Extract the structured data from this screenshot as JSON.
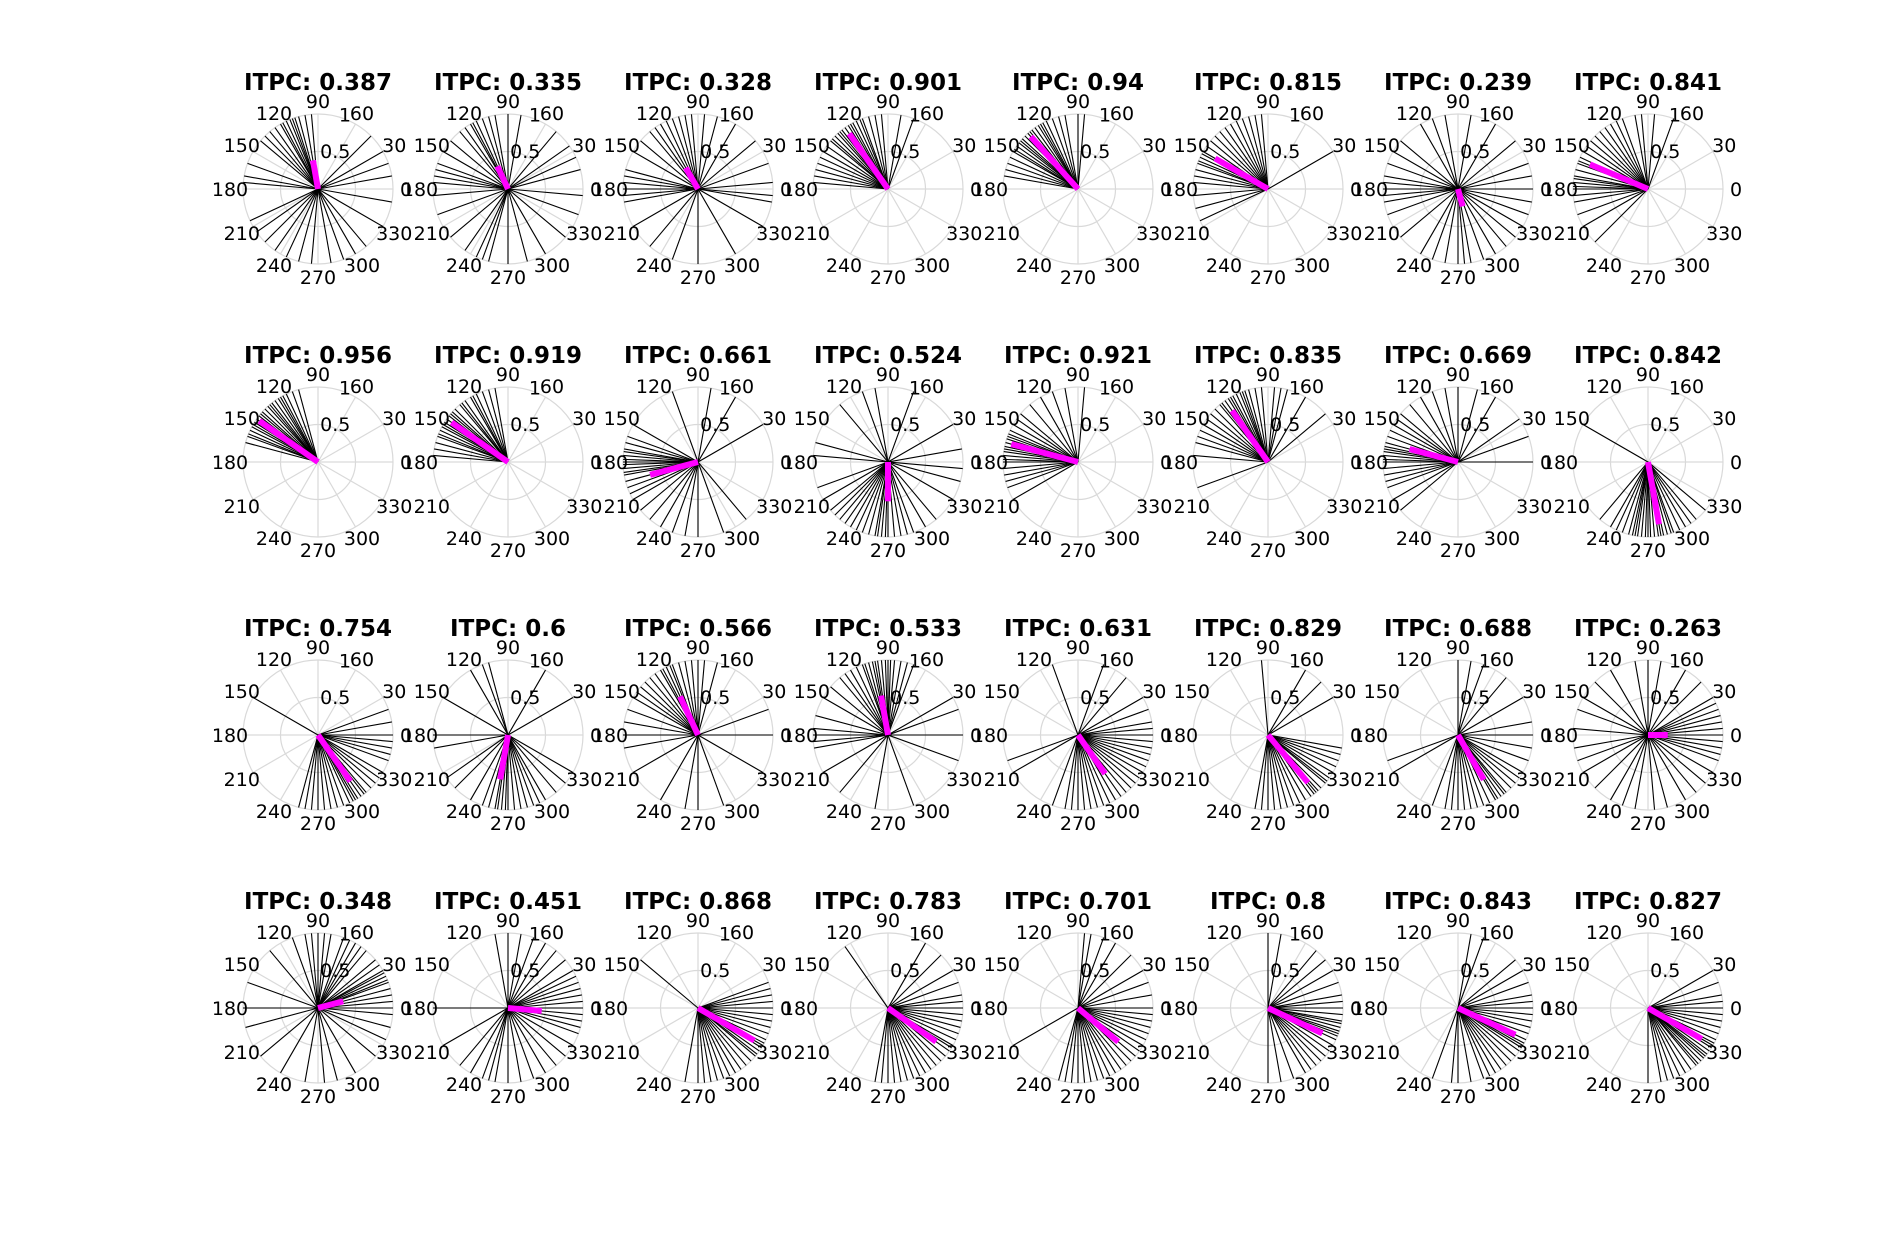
{
  "chart_data": {
    "type": "polar",
    "grid_rows": 4,
    "grid_cols": 8,
    "angle_ticks": [
      "0",
      "30",
      "60",
      "90",
      "120",
      "150",
      "180",
      "210",
      "240",
      "270",
      "300",
      "330"
    ],
    "radial_ticks": [
      "0.5",
      "1"
    ],
    "rlim": [
      0,
      1
    ],
    "colors": {
      "trials": "#000000",
      "mean_vector": "#ff00ff",
      "grid": "#d9d9d9"
    },
    "panels": [
      {
        "title": "ITPC: 0.387",
        "itpc": 0.387,
        "mean_angle": 100,
        "trial_angles": [
          95,
          100,
          105,
          108,
          110,
          112,
          115,
          118,
          120,
          125,
          130,
          135,
          140,
          160,
          170,
          175,
          205,
          215,
          225,
          235,
          245,
          255,
          265,
          280,
          290,
          300,
          310,
          330,
          350,
          10,
          20,
          30,
          45
        ]
      },
      {
        "title": "ITPC: 0.335",
        "itpc": 0.335,
        "mean_angle": 115,
        "trial_angles": [
          100,
          105,
          110,
          115,
          118,
          120,
          125,
          130,
          140,
          150,
          160,
          165,
          170,
          175,
          185,
          200,
          220,
          235,
          245,
          250,
          255,
          270,
          285,
          300,
          320,
          340,
          355,
          15,
          25,
          35,
          50,
          80,
          90
        ]
      },
      {
        "title": "ITPC: 0.328",
        "itpc": 0.328,
        "mean_angle": 120,
        "trial_angles": [
          95,
          100,
          105,
          110,
          115,
          120,
          125,
          130,
          140,
          150,
          165,
          170,
          175,
          180,
          185,
          190,
          210,
          230,
          250,
          270,
          300,
          330,
          350,
          355,
          5,
          20,
          40,
          60,
          75,
          85
        ]
      },
      {
        "title": "ITPC: 0.901",
        "itpc": 0.901,
        "mean_angle": 125,
        "trial_angles": [
          95,
          100,
          105,
          110,
          112,
          115,
          118,
          120,
          122,
          125,
          128,
          130,
          132,
          135,
          138,
          140,
          145,
          150,
          155,
          160,
          165,
          170,
          175,
          70,
          80
        ]
      },
      {
        "title": "ITPC: 0.94",
        "itpc": 0.94,
        "mean_angle": 132,
        "trial_angles": [
          100,
          105,
          110,
          115,
          118,
          120,
          122,
          125,
          128,
          130,
          132,
          135,
          138,
          140,
          142,
          145,
          148,
          150,
          155,
          160,
          165,
          170,
          85,
          90
        ]
      },
      {
        "title": "ITPC: 0.815",
        "itpc": 0.815,
        "mean_angle": 150,
        "trial_angles": [
          95,
          100,
          105,
          110,
          115,
          120,
          125,
          130,
          135,
          140,
          145,
          150,
          152,
          155,
          158,
          160,
          165,
          170,
          175,
          185,
          195,
          205,
          30
        ]
      },
      {
        "title": "ITPC: 0.239",
        "itpc": 0.239,
        "mean_angle": 285,
        "trial_angles": [
          100,
          110,
          120,
          140,
          150,
          160,
          170,
          175,
          180,
          185,
          190,
          200,
          220,
          240,
          250,
          260,
          270,
          275,
          280,
          290,
          300,
          310,
          320,
          330,
          340,
          350,
          0,
          10,
          20,
          40,
          60,
          80
        ]
      },
      {
        "title": "ITPC: 0.841",
        "itpc": 0.841,
        "mean_angle": 157,
        "trial_angles": [
          95,
          100,
          110,
          115,
          120,
          125,
          130,
          135,
          140,
          145,
          150,
          155,
          158,
          160,
          165,
          170,
          172,
          175,
          178,
          180,
          185,
          190,
          200,
          210,
          225,
          70,
          85
        ]
      },
      {
        "title": "ITPC: 0.956",
        "itpc": 0.956,
        "mean_angle": 145,
        "trial_angles": [
          105,
          110,
          115,
          118,
          120,
          122,
          125,
          128,
          130,
          132,
          135,
          138,
          140,
          142,
          145,
          148,
          150,
          152,
          155,
          158,
          160,
          165
        ]
      },
      {
        "title": "ITPC: 0.919",
        "itpc": 0.919,
        "mean_angle": 145,
        "trial_angles": [
          100,
          105,
          110,
          115,
          118,
          120,
          125,
          128,
          130,
          135,
          138,
          140,
          142,
          145,
          148,
          150,
          152,
          155,
          158,
          160,
          165,
          170,
          175
        ]
      },
      {
        "title": "ITPC: 0.661",
        "itpc": 0.661,
        "mean_angle": 195,
        "trial_angles": [
          110,
          150,
          160,
          165,
          170,
          172,
          175,
          178,
          180,
          182,
          185,
          188,
          190,
          195,
          200,
          205,
          210,
          220,
          230,
          240,
          250,
          260,
          270,
          290,
          310,
          30,
          60,
          80
        ]
      },
      {
        "title": "ITPC: 0.524",
        "itpc": 0.524,
        "mean_angle": 270,
        "trial_angles": [
          100,
          110,
          130,
          165,
          175,
          200,
          210,
          220,
          225,
          230,
          235,
          240,
          245,
          250,
          255,
          260,
          262,
          265,
          268,
          270,
          275,
          280,
          285,
          290,
          300,
          310,
          330,
          345,
          355,
          10,
          30,
          70
        ]
      },
      {
        "title": "ITPC: 0.921",
        "itpc": 0.921,
        "mean_angle": 165,
        "trial_angles": [
          100,
          110,
          120,
          130,
          140,
          145,
          150,
          155,
          158,
          160,
          162,
          165,
          168,
          170,
          172,
          175,
          178,
          180,
          185,
          190,
          195,
          200,
          210,
          85
        ]
      },
      {
        "title": "ITPC: 0.835",
        "itpc": 0.835,
        "mean_angle": 125,
        "trial_angles": [
          95,
          100,
          105,
          108,
          110,
          112,
          115,
          118,
          120,
          122,
          125,
          128,
          130,
          135,
          140,
          145,
          150,
          155,
          160,
          165,
          175,
          200,
          75,
          80,
          85,
          60,
          40
        ]
      },
      {
        "title": "ITPC: 0.669",
        "itpc": 0.669,
        "mean_angle": 165,
        "trial_angles": [
          75,
          90,
          100,
          110,
          120,
          130,
          140,
          145,
          150,
          155,
          160,
          165,
          168,
          170,
          172,
          175,
          178,
          180,
          185,
          190,
          195,
          200,
          210,
          220,
          0,
          20,
          35,
          60
        ]
      },
      {
        "title": "ITPC: 0.842",
        "itpc": 0.842,
        "mean_angle": 280,
        "trial_angles": [
          150,
          230,
          240,
          245,
          250,
          255,
          258,
          260,
          262,
          265,
          268,
          270,
          272,
          275,
          278,
          280,
          282,
          285,
          288,
          290,
          295,
          300,
          305,
          310,
          320
        ]
      },
      {
        "title": "ITPC: 0.754",
        "itpc": 0.754,
        "mean_angle": 305,
        "trial_angles": [
          150,
          255,
          260,
          265,
          270,
          275,
          280,
          285,
          290,
          295,
          298,
          300,
          302,
          305,
          308,
          310,
          315,
          320,
          325,
          330,
          340,
          345,
          350,
          355,
          0,
          10,
          20
        ]
      },
      {
        "title": "ITPC: 0.6",
        "itpc": 0.6,
        "mean_angle": 260,
        "trial_angles": [
          105,
          110,
          120,
          150,
          180,
          190,
          215,
          225,
          240,
          250,
          255,
          260,
          262,
          265,
          268,
          270,
          275,
          280,
          285,
          290,
          295,
          300,
          310,
          320,
          330,
          30,
          60
        ]
      },
      {
        "title": "ITPC: 0.566",
        "itpc": 0.566,
        "mean_angle": 115,
        "trial_angles": [
          75,
          85,
          90,
          95,
          100,
          105,
          110,
          112,
          115,
          118,
          120,
          125,
          130,
          135,
          140,
          145,
          150,
          160,
          170,
          180,
          190,
          210,
          240,
          260,
          270,
          290,
          330,
          0,
          20
        ]
      },
      {
        "title": "ITPC: 0.533",
        "itpc": 0.533,
        "mean_angle": 100,
        "trial_angles": [
          70,
          75,
          80,
          85,
          88,
          90,
          92,
          95,
          98,
          100,
          102,
          105,
          108,
          110,
          115,
          120,
          125,
          130,
          140,
          150,
          165,
          175,
          180,
          185,
          190,
          210,
          230,
          260,
          290,
          340,
          0,
          20,
          30
        ]
      },
      {
        "title": "ITPC: 0.631",
        "itpc": 0.631,
        "mean_angle": 305,
        "trial_angles": [
          110,
          200,
          210,
          250,
          260,
          265,
          270,
          275,
          280,
          285,
          290,
          295,
          300,
          305,
          310,
          315,
          320,
          325,
          330,
          335,
          340,
          345,
          350,
          355,
          0,
          5,
          10,
          20,
          30,
          50,
          70
        ]
      },
      {
        "title": "ITPC: 0.829",
        "itpc": 0.829,
        "mean_angle": 310,
        "trial_angles": [
          95,
          260,
          265,
          270,
          275,
          280,
          285,
          290,
          295,
          300,
          305,
          308,
          310,
          312,
          315,
          320,
          322,
          325,
          330,
          335,
          340,
          345,
          350,
          30,
          45,
          60
        ]
      },
      {
        "title": "ITPC: 0.688",
        "itpc": 0.688,
        "mean_angle": 300,
        "trial_angles": [
          70,
          80,
          90,
          200,
          210,
          250,
          260,
          265,
          270,
          275,
          280,
          285,
          290,
          295,
          300,
          302,
          305,
          308,
          310,
          315,
          320,
          325,
          330,
          340,
          350,
          0,
          10,
          30,
          50
        ]
      },
      {
        "title": "ITPC: 0.263",
        "itpc": 0.263,
        "mean_angle": 0,
        "trial_angles": [
          100,
          120,
          135,
          150,
          160,
          175,
          190,
          200,
          210,
          225,
          240,
          250,
          260,
          275,
          285,
          300,
          310,
          320,
          330,
          340,
          345,
          350,
          355,
          0,
          5,
          10,
          15,
          20,
          25,
          30,
          45,
          60,
          80,
          90
        ]
      },
      {
        "title": "ITPC: 0.348",
        "itpc": 0.348,
        "mean_angle": 15,
        "trial_angles": [
          80,
          85,
          90,
          95,
          100,
          110,
          130,
          160,
          180,
          195,
          220,
          240,
          260,
          275,
          285,
          300,
          320,
          335,
          345,
          355,
          0,
          5,
          10,
          15,
          20,
          22,
          25,
          28,
          30,
          35,
          40,
          50,
          55,
          60,
          65,
          70
        ]
      },
      {
        "title": "ITPC: 0.451",
        "itpc": 0.451,
        "mean_angle": 355,
        "trial_angles": [
          80,
          90,
          100,
          180,
          210,
          230,
          240,
          250,
          255,
          260,
          270,
          280,
          290,
          300,
          310,
          320,
          330,
          340,
          345,
          350,
          355,
          0,
          5,
          10,
          15,
          20,
          25,
          30,
          40,
          50,
          60,
          70
        ]
      },
      {
        "title": "ITPC: 0.868",
        "itpc": 0.868,
        "mean_angle": 330,
        "trial_angles": [
          140,
          260,
          270,
          275,
          280,
          285,
          290,
          295,
          300,
          305,
          310,
          315,
          320,
          322,
          325,
          328,
          330,
          332,
          335,
          340,
          345,
          350,
          355,
          0,
          5,
          10,
          15,
          20
        ]
      },
      {
        "title": "ITPC: 0.783",
        "itpc": 0.783,
        "mean_angle": 325,
        "trial_angles": [
          125,
          260,
          265,
          270,
          275,
          280,
          285,
          290,
          295,
          300,
          305,
          310,
          315,
          320,
          325,
          328,
          330,
          335,
          340,
          345,
          350,
          355,
          0,
          5,
          10,
          20,
          30,
          45,
          60
        ]
      },
      {
        "title": "ITPC: 0.701",
        "itpc": 0.701,
        "mean_angle": 320,
        "trial_angles": [
          80,
          85,
          210,
          255,
          260,
          265,
          270,
          275,
          280,
          285,
          290,
          295,
          300,
          305,
          310,
          315,
          320,
          325,
          330,
          335,
          340,
          345,
          350,
          355,
          0,
          10,
          20,
          30,
          45,
          60,
          70
        ]
      },
      {
        "title": "ITPC: 0.8",
        "itpc": 0.8,
        "mean_angle": 335,
        "trial_angles": [
          80,
          90,
          270,
          280,
          290,
          300,
          305,
          310,
          315,
          320,
          325,
          330,
          335,
          338,
          340,
          342,
          345,
          348,
          350,
          355,
          0,
          5,
          10,
          20,
          30,
          40,
          50
        ]
      },
      {
        "title": "ITPC: 0.843",
        "itpc": 0.843,
        "mean_angle": 335,
        "trial_angles": [
          70,
          80,
          250,
          265,
          270,
          280,
          290,
          295,
          300,
          305,
          310,
          315,
          320,
          325,
          328,
          330,
          332,
          335,
          340,
          345,
          350,
          355,
          0,
          5,
          10,
          20,
          30,
          40
        ]
      },
      {
        "title": "ITPC: 0.827",
        "itpc": 0.827,
        "mean_angle": 330,
        "trial_angles": [
          270,
          280,
          285,
          290,
          295,
          300,
          305,
          310,
          312,
          315,
          318,
          320,
          322,
          325,
          328,
          330,
          332,
          335,
          340,
          345,
          350,
          355,
          0,
          5,
          10,
          20,
          30
        ]
      }
    ]
  }
}
